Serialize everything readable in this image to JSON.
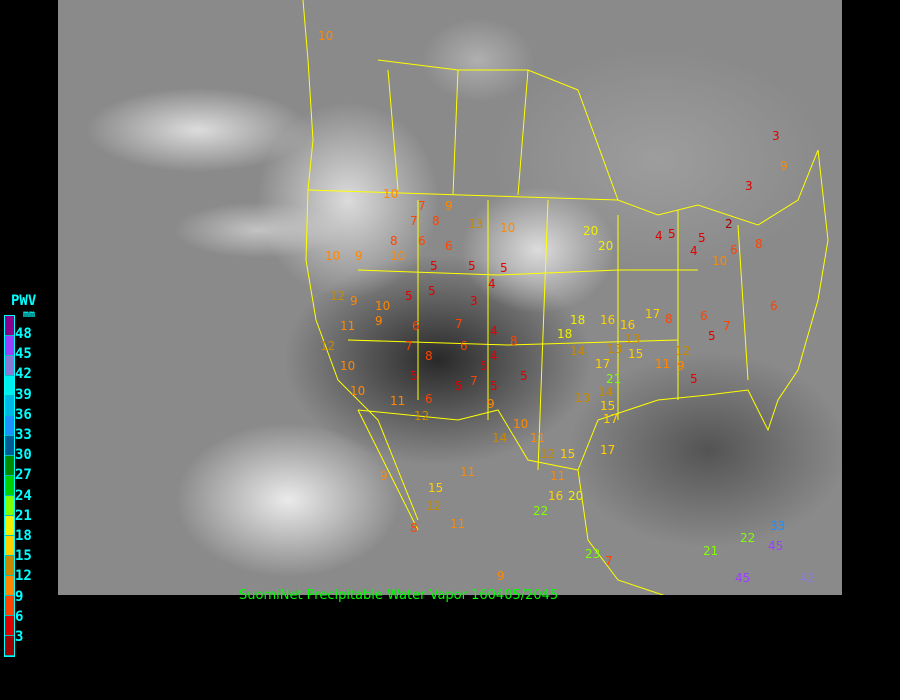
{
  "caption": "SuomiNet Precipitable Water Vapor 160405/2045",
  "legend": {
    "title": "PWV",
    "unit": "mm",
    "labels": [
      "48",
      "45",
      "42",
      "39",
      "36",
      "33",
      "30",
      "27",
      "24",
      "21",
      "18",
      "15",
      "12",
      "9",
      "6",
      "3"
    ],
    "colors": [
      "#8b008b",
      "#9a40ff",
      "#8a7ad8",
      "#00f0f0",
      "#00b8e8",
      "#1e90ff",
      "#005a96",
      "#008a00",
      "#00d000",
      "#80ff00",
      "#f0f000",
      "#ffd000",
      "#c88800",
      "#ff8800",
      "#ff4400",
      "#e00000",
      "#a00000"
    ]
  },
  "stations": [
    10,
    10,
    7,
    8,
    6,
    9,
    13,
    10,
    18,
    16,
    15,
    20,
    5,
    4,
    2,
    3,
    9,
    3,
    10,
    9,
    8,
    7,
    5,
    6,
    5,
    4,
    5,
    3,
    12,
    11,
    9,
    5,
    5,
    7,
    6,
    4,
    5,
    8,
    5,
    10,
    12,
    9,
    10,
    7,
    6,
    8,
    5,
    4,
    5,
    7,
    5,
    9,
    10,
    11,
    14,
    17,
    13,
    16,
    17,
    12,
    11,
    13,
    13,
    14,
    18,
    20,
    21,
    15,
    17,
    8,
    5,
    7,
    6,
    9,
    5,
    4,
    10,
    5,
    6,
    8,
    6,
    10,
    10,
    11,
    12,
    14,
    12,
    11,
    15,
    16,
    20,
    22,
    23,
    21,
    22,
    42,
    45,
    45,
    33,
    9,
    7,
    11,
    6,
    17,
    12,
    8,
    15,
    11,
    9
  ]
}
